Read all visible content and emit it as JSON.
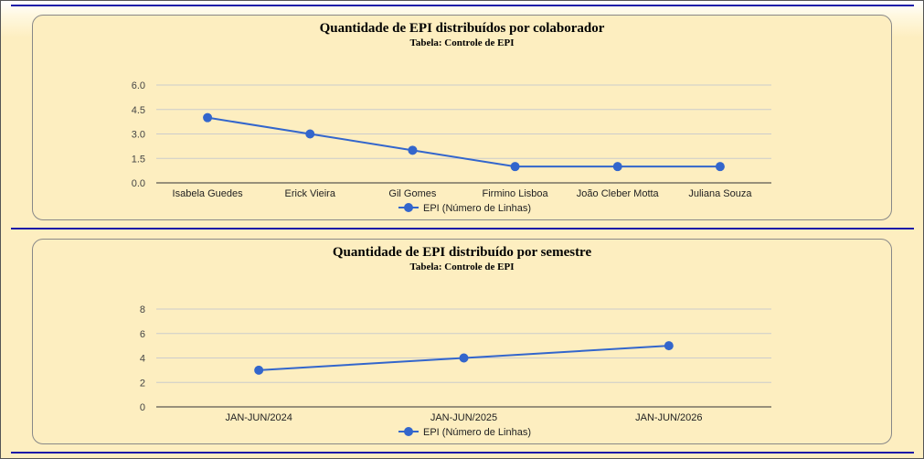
{
  "chart_data": [
    {
      "type": "line",
      "title": "Quantidade de EPI distribuídos por colaborador",
      "subtitle": "Tabela: Controle de EPI",
      "categories": [
        "Isabela Guedes",
        "Erick Vieira",
        "Gil Gomes",
        "Firmino Lisboa",
        "João Cleber Motta",
        "Juliana Souza"
      ],
      "series": [
        {
          "name": "EPI (Número de Linhas)",
          "values": [
            4,
            3,
            2,
            1,
            1,
            1
          ]
        }
      ],
      "yticks": [
        "0.0",
        "1.5",
        "3.0",
        "4.5",
        "6.0"
      ],
      "ylim": [
        0,
        6
      ],
      "legend": "bottom",
      "grid": true,
      "color": "#3366cc"
    },
    {
      "type": "line",
      "title": "Quantidade de EPI distribuído por semestre",
      "subtitle": "Tabela: Controle de EPI",
      "categories": [
        "JAN-JUN/2024",
        "JAN-JUN/2025",
        "JAN-JUN/2026"
      ],
      "series": [
        {
          "name": "EPI (Número de Linhas)",
          "values": [
            3,
            4,
            5
          ]
        }
      ],
      "yticks": [
        "0",
        "2",
        "4",
        "6",
        "8"
      ],
      "ylim": [
        0,
        8
      ],
      "legend": "bottom",
      "grid": true,
      "color": "#3366cc"
    }
  ]
}
